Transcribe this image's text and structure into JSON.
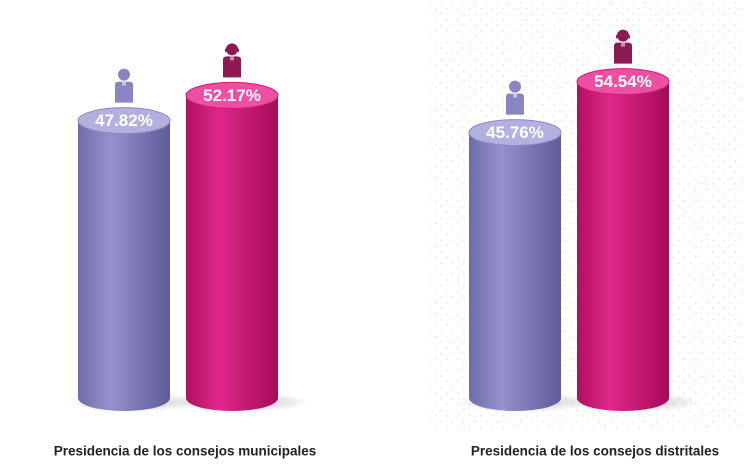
{
  "chart_data": {
    "type": "bar",
    "categories": [
      "Presidencia de los consejos municipales",
      "Presidencia de los consejos distritales"
    ],
    "series": [
      {
        "color": "#8a86c6",
        "values": [
          47.82,
          45.76
        ],
        "value_labels": [
          "47.82%",
          "45.76%"
        ]
      },
      {
        "color": "#d3187a",
        "values": [
          52.17,
          54.54
        ],
        "value_labels": [
          "52.17%",
          "54.54%"
        ]
      }
    ]
  }
}
